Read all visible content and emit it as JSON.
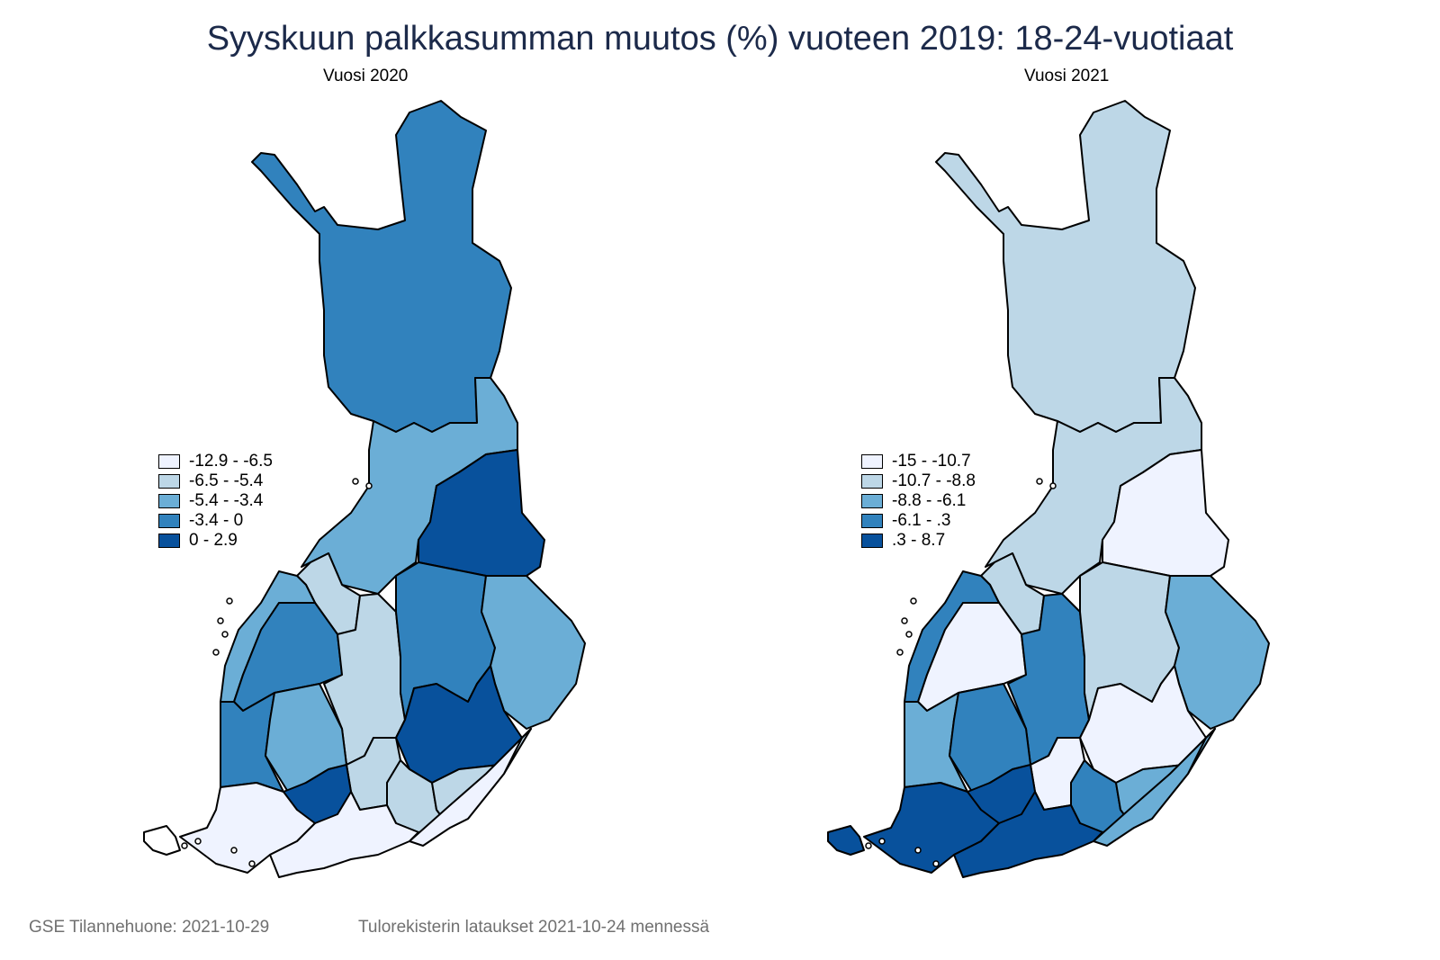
{
  "title": "Syyskuun palkkasumman muutos (%) vuoteen 2019: 18-24-vuotiaat",
  "maps": [
    {
      "subtitle": "Vuosi 2020",
      "legend": [
        {
          "label": "-12.9  -  -6.5",
          "color": "#eff3ff"
        },
        {
          "label": "-6.5  -  -5.4",
          "color": "#bdd7e7"
        },
        {
          "label": "-5.4  -  -3.4",
          "color": "#6baed6"
        },
        {
          "label": "-3.4  -  0",
          "color": "#3182bd"
        },
        {
          "label": "0  -  2.9",
          "color": "#08519c"
        }
      ],
      "region_classes": {
        "lappi": 3,
        "pohjois-pohjanmaa": 2,
        "kainuu": 4,
        "keski-pohjanmaa": 1,
        "pohjanmaa": 2,
        "etela-pohjanmaa": 3,
        "keski-suomi": 1,
        "pohjois-savo": 3,
        "pohjois-karjala": 2,
        "satakunta": 3,
        "pirkanmaa": 2,
        "etela-savo": 4,
        "kanta-hame": 1,
        "paijat-hame": 1,
        "kymenlaakso": 1,
        "etela-karjala": 0,
        "varsinais-suomi": 0,
        "uusimaa": 0,
        "lansi-uusimaa": 4
      }
    },
    {
      "subtitle": "Vuosi 2021",
      "legend": [
        {
          "label": "-15  -  -10.7",
          "color": "#eff3ff"
        },
        {
          "label": "-10.7  -  -8.8",
          "color": "#bdd7e7"
        },
        {
          "label": "-8.8  -  -6.1",
          "color": "#6baed6"
        },
        {
          "label": "-6.1  -  .3",
          "color": "#3182bd"
        },
        {
          "label": ".3  -  8.7",
          "color": "#08519c"
        }
      ],
      "region_classes": {
        "lappi": 1,
        "pohjois-pohjanmaa": 1,
        "kainuu": 0,
        "keski-pohjanmaa": 1,
        "pohjanmaa": 3,
        "etela-pohjanmaa": 0,
        "keski-suomi": 3,
        "pohjois-savo": 1,
        "pohjois-karjala": 2,
        "satakunta": 2,
        "pirkanmaa": 3,
        "etela-savo": 0,
        "kanta-hame": 0,
        "paijat-hame": 3,
        "kymenlaakso": 2,
        "etela-karjala": 2,
        "varsinais-suomi": 4,
        "uusimaa": 4,
        "lansi-uusimaa": 4,
        "ahvenanmaa": 4
      }
    }
  ],
  "footer": {
    "left": "GSE Tilannehuone: 2021-10-29",
    "right": "Tulorekisterin lataukset 2021-10-24 mennessä"
  }
}
